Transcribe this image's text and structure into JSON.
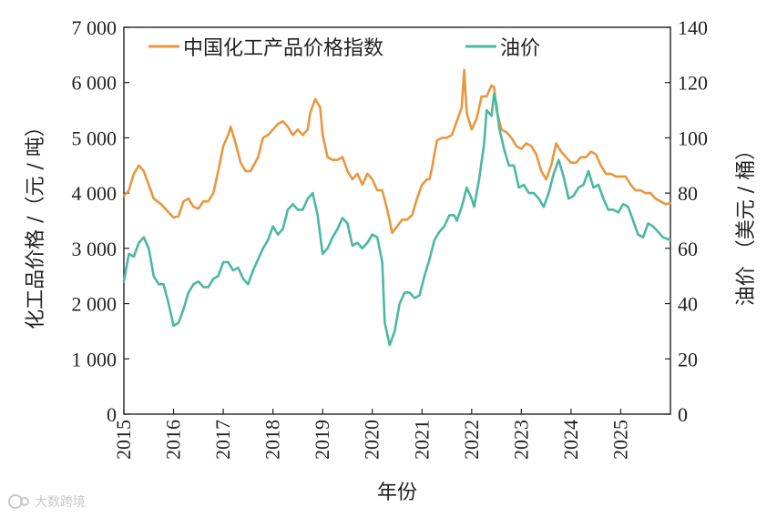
{
  "chart_data": {
    "type": "line",
    "xlabel": "年份",
    "ylabel_left": "化工品价格 /（元 / 吨）",
    "ylabel_right": "油价 （美元 / 桶）",
    "x_ticks": [
      "2015",
      "2016",
      "2017",
      "2018",
      "2019",
      "2020",
      "2021",
      "2022",
      "2023",
      "2024",
      "2025"
    ],
    "y_left_ticks": [
      "0",
      "1 000",
      "2 000",
      "3 000",
      "4 000",
      "5 000",
      "6 000",
      "7 000"
    ],
    "y_right_ticks": [
      "0",
      "20",
      "40",
      "60",
      "80",
      "100",
      "120",
      "140"
    ],
    "xlim": [
      2015.0,
      2026.0
    ],
    "ylim_left": [
      0,
      7000
    ],
    "ylim_right": [
      0,
      140
    ],
    "grid": false,
    "legend_position": "top",
    "series": [
      {
        "name": "中国化工产品价格指数",
        "axis": "left",
        "color": "#E8973E",
        "points": [
          [
            2015.0,
            3950
          ],
          [
            2015.1,
            4050
          ],
          [
            2015.2,
            4350
          ],
          [
            2015.3,
            4500
          ],
          [
            2015.4,
            4400
          ],
          [
            2015.5,
            4150
          ],
          [
            2015.6,
            3900
          ],
          [
            2015.75,
            3800
          ],
          [
            2015.9,
            3650
          ],
          [
            2016.0,
            3560
          ],
          [
            2016.1,
            3580
          ],
          [
            2016.2,
            3850
          ],
          [
            2016.3,
            3900
          ],
          [
            2016.4,
            3750
          ],
          [
            2016.5,
            3720
          ],
          [
            2016.6,
            3850
          ],
          [
            2016.7,
            3850
          ],
          [
            2016.8,
            4000
          ],
          [
            2016.9,
            4400
          ],
          [
            2017.0,
            4850
          ],
          [
            2017.1,
            5050
          ],
          [
            2017.15,
            5200
          ],
          [
            2017.25,
            4900
          ],
          [
            2017.35,
            4550
          ],
          [
            2017.45,
            4400
          ],
          [
            2017.55,
            4400
          ],
          [
            2017.7,
            4650
          ],
          [
            2017.8,
            5000
          ],
          [
            2017.9,
            5050
          ],
          [
            2018.0,
            5150
          ],
          [
            2018.1,
            5250
          ],
          [
            2018.2,
            5300
          ],
          [
            2018.3,
            5200
          ],
          [
            2018.4,
            5050
          ],
          [
            2018.5,
            5150
          ],
          [
            2018.6,
            5050
          ],
          [
            2018.7,
            5150
          ],
          [
            2018.75,
            5450
          ],
          [
            2018.85,
            5700
          ],
          [
            2018.95,
            5550
          ],
          [
            2019.0,
            5050
          ],
          [
            2019.1,
            4650
          ],
          [
            2019.2,
            4600
          ],
          [
            2019.3,
            4600
          ],
          [
            2019.4,
            4650
          ],
          [
            2019.5,
            4400
          ],
          [
            2019.6,
            4250
          ],
          [
            2019.7,
            4350
          ],
          [
            2019.8,
            4150
          ],
          [
            2019.9,
            4350
          ],
          [
            2020.0,
            4250
          ],
          [
            2020.1,
            4050
          ],
          [
            2020.2,
            4050
          ],
          [
            2020.3,
            3700
          ],
          [
            2020.35,
            3500
          ],
          [
            2020.4,
            3280
          ],
          [
            2020.5,
            3400
          ],
          [
            2020.6,
            3520
          ],
          [
            2020.7,
            3520
          ],
          [
            2020.8,
            3600
          ],
          [
            2020.9,
            3900
          ],
          [
            2021.0,
            4150
          ],
          [
            2021.1,
            4250
          ],
          [
            2021.15,
            4250
          ],
          [
            2021.2,
            4450
          ],
          [
            2021.3,
            4950
          ],
          [
            2021.4,
            5000
          ],
          [
            2021.5,
            5000
          ],
          [
            2021.6,
            5050
          ],
          [
            2021.7,
            5300
          ],
          [
            2021.8,
            5550
          ],
          [
            2021.85,
            6230
          ],
          [
            2021.9,
            5450
          ],
          [
            2022.0,
            5150
          ],
          [
            2022.1,
            5350
          ],
          [
            2022.2,
            5750
          ],
          [
            2022.3,
            5750
          ],
          [
            2022.4,
            5950
          ],
          [
            2022.45,
            5920
          ],
          [
            2022.5,
            5500
          ],
          [
            2022.6,
            5150
          ],
          [
            2022.7,
            5100
          ],
          [
            2022.8,
            5000
          ],
          [
            2022.9,
            4850
          ],
          [
            2023.0,
            4800
          ],
          [
            2023.1,
            4900
          ],
          [
            2023.2,
            4850
          ],
          [
            2023.3,
            4700
          ],
          [
            2023.4,
            4400
          ],
          [
            2023.5,
            4250
          ],
          [
            2023.6,
            4500
          ],
          [
            2023.7,
            4900
          ],
          [
            2023.8,
            4750
          ],
          [
            2023.9,
            4650
          ],
          [
            2024.0,
            4550
          ],
          [
            2024.1,
            4550
          ],
          [
            2024.2,
            4650
          ],
          [
            2024.3,
            4650
          ],
          [
            2024.4,
            4750
          ],
          [
            2024.5,
            4700
          ],
          [
            2024.6,
            4500
          ],
          [
            2024.7,
            4350
          ],
          [
            2024.8,
            4350
          ],
          [
            2024.9,
            4300
          ],
          [
            2025.0,
            4300
          ],
          [
            2025.1,
            4300
          ],
          [
            2025.2,
            4150
          ],
          [
            2025.3,
            4050
          ],
          [
            2025.4,
            4050
          ],
          [
            2025.5,
            4000
          ],
          [
            2025.6,
            4000
          ],
          [
            2025.7,
            3900
          ],
          [
            2025.8,
            3850
          ],
          [
            2025.9,
            3800
          ],
          [
            2026.0,
            3820
          ]
        ]
      },
      {
        "name": "油价",
        "axis": "right",
        "color": "#4BB8A0",
        "points": [
          [
            2015.0,
            48
          ],
          [
            2015.1,
            58
          ],
          [
            2015.2,
            57
          ],
          [
            2015.3,
            62
          ],
          [
            2015.4,
            64
          ],
          [
            2015.5,
            60
          ],
          [
            2015.6,
            50
          ],
          [
            2015.7,
            47
          ],
          [
            2015.8,
            47
          ],
          [
            2015.9,
            40
          ],
          [
            2016.0,
            32
          ],
          [
            2016.1,
            33
          ],
          [
            2016.2,
            38
          ],
          [
            2016.3,
            44
          ],
          [
            2016.4,
            47
          ],
          [
            2016.5,
            48
          ],
          [
            2016.6,
            46
          ],
          [
            2016.7,
            46
          ],
          [
            2016.8,
            49
          ],
          [
            2016.9,
            50
          ],
          [
            2017.0,
            55
          ],
          [
            2017.1,
            55
          ],
          [
            2017.2,
            52
          ],
          [
            2017.3,
            53
          ],
          [
            2017.4,
            49
          ],
          [
            2017.5,
            47
          ],
          [
            2017.6,
            52
          ],
          [
            2017.7,
            56
          ],
          [
            2017.8,
            60
          ],
          [
            2017.9,
            63
          ],
          [
            2018.0,
            68
          ],
          [
            2018.1,
            65
          ],
          [
            2018.2,
            67
          ],
          [
            2018.3,
            74
          ],
          [
            2018.4,
            76
          ],
          [
            2018.5,
            74
          ],
          [
            2018.6,
            74
          ],
          [
            2018.7,
            78
          ],
          [
            2018.8,
            80
          ],
          [
            2018.9,
            72
          ],
          [
            2019.0,
            58
          ],
          [
            2019.1,
            60
          ],
          [
            2019.2,
            64
          ],
          [
            2019.3,
            67
          ],
          [
            2019.4,
            71
          ],
          [
            2019.5,
            69
          ],
          [
            2019.6,
            61
          ],
          [
            2019.7,
            62
          ],
          [
            2019.8,
            60
          ],
          [
            2019.9,
            62
          ],
          [
            2020.0,
            65
          ],
          [
            2020.1,
            64
          ],
          [
            2020.2,
            55
          ],
          [
            2020.25,
            33
          ],
          [
            2020.35,
            25
          ],
          [
            2020.45,
            30
          ],
          [
            2020.55,
            40
          ],
          [
            2020.65,
            44
          ],
          [
            2020.75,
            44
          ],
          [
            2020.85,
            42
          ],
          [
            2020.95,
            43
          ],
          [
            2021.05,
            50
          ],
          [
            2021.15,
            56
          ],
          [
            2021.25,
            63
          ],
          [
            2021.35,
            66
          ],
          [
            2021.45,
            68
          ],
          [
            2021.55,
            72
          ],
          [
            2021.65,
            72
          ],
          [
            2021.7,
            70
          ],
          [
            2021.8,
            75
          ],
          [
            2021.9,
            82
          ],
          [
            2022.0,
            78
          ],
          [
            2022.05,
            75
          ],
          [
            2022.15,
            85
          ],
          [
            2022.25,
            98
          ],
          [
            2022.3,
            110
          ],
          [
            2022.4,
            108
          ],
          [
            2022.45,
            116
          ],
          [
            2022.5,
            112
          ],
          [
            2022.55,
            104
          ],
          [
            2022.65,
            96
          ],
          [
            2022.75,
            90
          ],
          [
            2022.85,
            90
          ],
          [
            2022.95,
            82
          ],
          [
            2023.05,
            83
          ],
          [
            2023.15,
            80
          ],
          [
            2023.25,
            80
          ],
          [
            2023.35,
            78
          ],
          [
            2023.45,
            75
          ],
          [
            2023.55,
            80
          ],
          [
            2023.65,
            87
          ],
          [
            2023.75,
            92
          ],
          [
            2023.85,
            86
          ],
          [
            2023.95,
            78
          ],
          [
            2024.05,
            79
          ],
          [
            2024.15,
            82
          ],
          [
            2024.25,
            83
          ],
          [
            2024.35,
            88
          ],
          [
            2024.45,
            82
          ],
          [
            2024.55,
            83
          ],
          [
            2024.65,
            78
          ],
          [
            2024.75,
            74
          ],
          [
            2024.85,
            74
          ],
          [
            2024.95,
            73
          ],
          [
            2025.05,
            76
          ],
          [
            2025.15,
            75
          ],
          [
            2025.25,
            70
          ],
          [
            2025.35,
            65
          ],
          [
            2025.45,
            64
          ],
          [
            2025.55,
            69
          ],
          [
            2025.65,
            68
          ],
          [
            2025.75,
            66
          ],
          [
            2025.85,
            64
          ],
          [
            2026.0,
            63
          ]
        ]
      }
    ]
  },
  "watermark": {
    "text": "大数跨境",
    "icon": "logo-icon"
  }
}
